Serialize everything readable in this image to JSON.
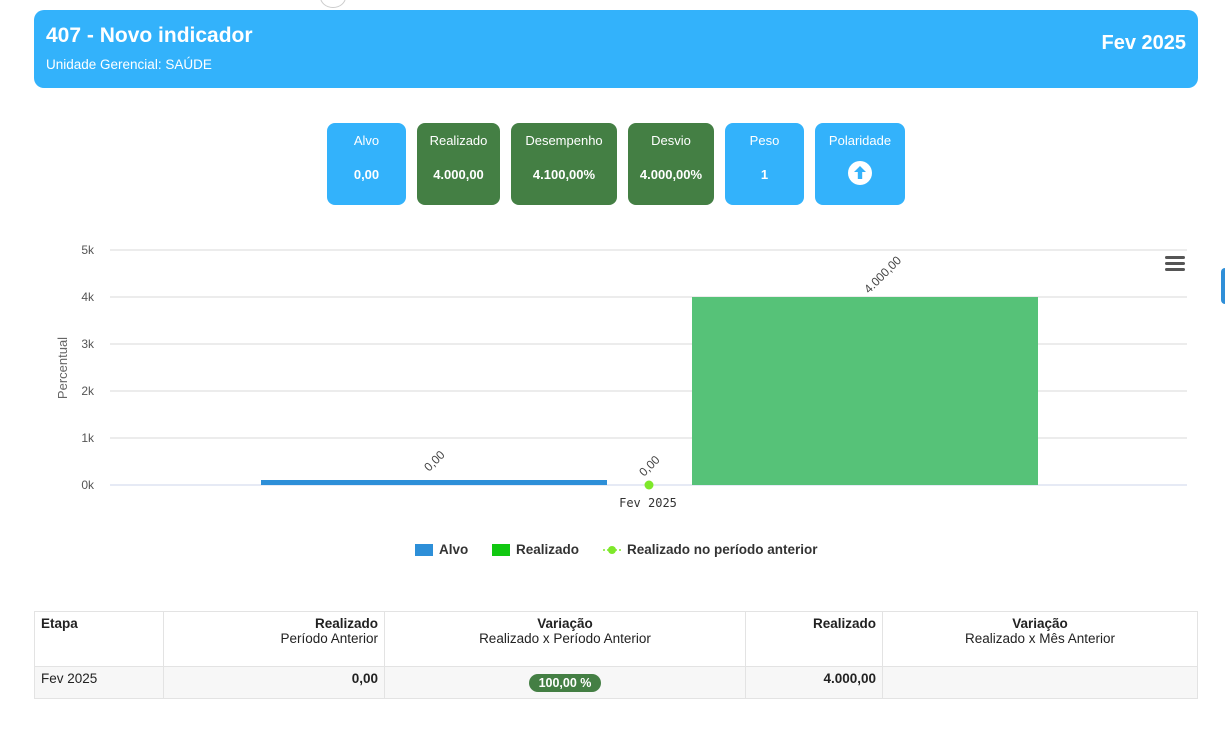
{
  "header": {
    "title": "407 - Novo indicador",
    "subtitle": "Unidade Gerencial: SAÚDE",
    "period": "Fev 2025",
    "bg_color": "#33b2fb"
  },
  "cards": [
    {
      "label": "Alvo",
      "value": "0,00",
      "color": "#33b2fb"
    },
    {
      "label": "Realizado",
      "value": "4.000,00",
      "color": "#447f44"
    },
    {
      "label": "Desempenho",
      "value": "4.100,00%",
      "color": "#447f44"
    },
    {
      "label": "Desvio",
      "value": "4.000,00%",
      "color": "#447f44"
    },
    {
      "label": "Peso",
      "value": "1",
      "color": "#33b2fb"
    },
    {
      "label": "Polaridade",
      "icon": "arrow-up-circle-icon",
      "color": "#33b2fb"
    }
  ],
  "chart_data": {
    "type": "bar",
    "categories": [
      "Fev 2025"
    ],
    "ylabel": "Percentual",
    "ylim": [
      0,
      5000
    ],
    "yticks": [
      "0k",
      "1k",
      "2k",
      "3k",
      "4k",
      "5k"
    ],
    "grid": true,
    "legend_position": "bottom",
    "series": [
      {
        "name": "Alvo",
        "type": "bar",
        "values": [
          0
        ],
        "data_labels": [
          "0,00"
        ],
        "color": "#2d8fd8"
      },
      {
        "name": "Realizado",
        "type": "bar",
        "values": [
          4000
        ],
        "data_labels": [
          "4.000,00"
        ],
        "color": "#56c278"
      },
      {
        "name": "Realizado no período anterior",
        "type": "line",
        "values": [
          0
        ],
        "data_labels": [
          "0,00"
        ],
        "color": "#7ee82a"
      }
    ]
  },
  "legend": {
    "alvo": "Alvo",
    "realizado": "Realizado",
    "anterior": "Realizado no período anterior"
  },
  "table": {
    "headers": [
      {
        "title": "Etapa",
        "sub": ""
      },
      {
        "title": "Realizado",
        "sub": "Período Anterior"
      },
      {
        "title": "Variação",
        "sub": "Realizado x Período Anterior"
      },
      {
        "title": "Realizado",
        "sub": ""
      },
      {
        "title": "Variação",
        "sub": "Realizado x Mês Anterior"
      }
    ],
    "rows": [
      {
        "etapa": "Fev 2025",
        "realizado_anterior": "0,00",
        "variacao": "100,00 %",
        "realizado": "4.000,00",
        "variacao_mes": ""
      }
    ]
  }
}
